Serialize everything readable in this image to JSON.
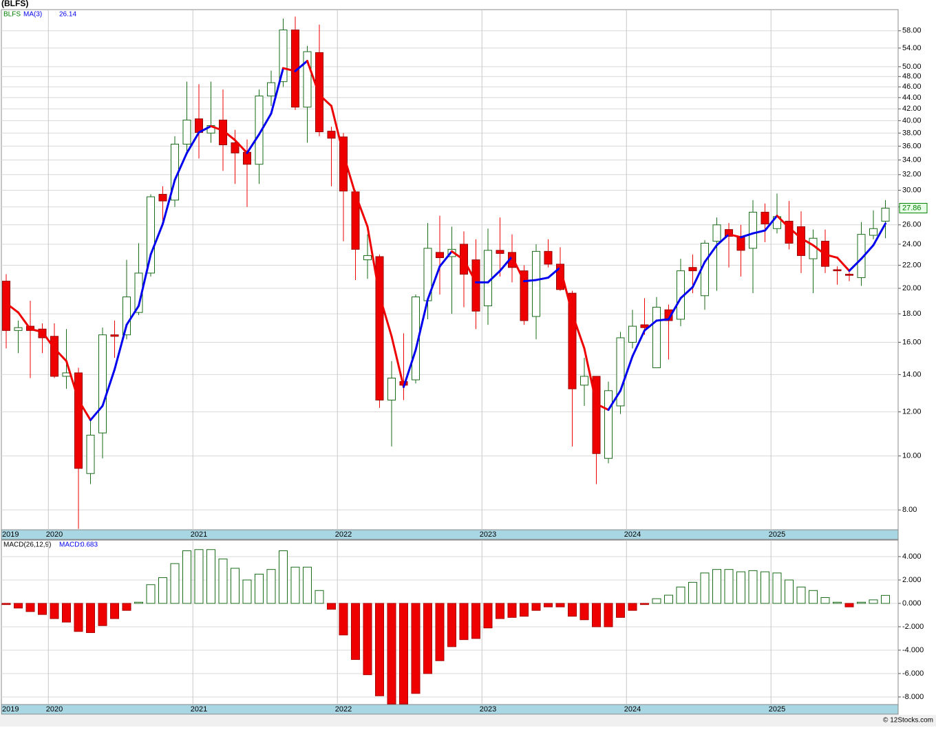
{
  "chart_data": [
    {
      "type": "candlestick",
      "title": "(BLFS)",
      "x": [
        "2019",
        null,
        null,
        null,
        "2020",
        null,
        null,
        null,
        null,
        null,
        null,
        null,
        null,
        null,
        null,
        null,
        "2021",
        null,
        null,
        null,
        null,
        null,
        null,
        null,
        null,
        null,
        null,
        null,
        "2022",
        null,
        null,
        null,
        null,
        null,
        null,
        null,
        null,
        null,
        null,
        null,
        "2023",
        null,
        null,
        null,
        null,
        null,
        null,
        null,
        null,
        null,
        null,
        null,
        "2024",
        null,
        null,
        null,
        null,
        null,
        null,
        null,
        null,
        null,
        null,
        null,
        "2025",
        null,
        null,
        null,
        null,
        null,
        null,
        null,
        null,
        null
      ],
      "series": [
        {
          "name": "BLFS",
          "color": "#008000",
          "up_color": "#1a6b1a",
          "down_color": "#ee0000",
          "open": [
            20.6,
            16.8,
            17.1,
            16.9,
            16.4,
            13.9,
            14.1,
            9.3,
            11.0,
            16.5,
            16.5,
            18.1,
            21.3,
            29.5,
            28.8,
            36.3,
            40.3,
            38.0,
            40.1,
            36.5,
            35.1,
            33.4,
            44.3,
            47.0,
            58.2,
            42.3,
            53.0,
            38.3,
            37.4,
            29.8,
            22.5,
            22.8,
            12.6,
            13.6,
            13.7,
            19.0,
            23.2,
            22.8,
            24.0,
            22.5,
            18.6,
            23.4,
            23.2,
            21.5,
            17.8,
            23.3,
            22.1,
            19.6,
            13.4,
            13.9,
            9.9,
            12.3,
            16.0,
            17.2,
            14.4,
            18.3,
            17.6,
            21.8,
            19.4,
            24.3,
            25.5,
            24.8,
            23.6,
            27.4,
            25.6,
            26.4,
            25.8,
            22.6,
            24.3,
            21.6,
            21.2,
            20.9,
            24.9,
            26.4
          ],
          "high": [
            21.2,
            17.5,
            19.0,
            17.3,
            17.3,
            16.9,
            14.4,
            11.6,
            17.0,
            17.5,
            22.5,
            24.1,
            29.5,
            30.5,
            37.5,
            47.0,
            46.5,
            47.0,
            45.5,
            38.5,
            37.0,
            45.5,
            49.2,
            61.0,
            61.5,
            54.5,
            59.5,
            39.0,
            38.0,
            30.0,
            25.0,
            23.0,
            14.8,
            16.6,
            19.5,
            26.2,
            27.0,
            25.8,
            25.3,
            24.5,
            25.6,
            26.8,
            25.0,
            22.0,
            24.0,
            24.5,
            23.7,
            19.8,
            15.0,
            13.9,
            13.6,
            16.7,
            18.3,
            19.2,
            19.3,
            18.7,
            22.6,
            23.0,
            24.4,
            26.8,
            26.2,
            26.0,
            28.8,
            28.4,
            29.6,
            28.7,
            27.5,
            25.5,
            25.5,
            21.9,
            21.4,
            26.3,
            27.6,
            28.8
          ],
          "low": [
            15.6,
            15.3,
            13.8,
            15.3,
            13.8,
            13.2,
            7.4,
            8.9,
            9.9,
            15.0,
            16.2,
            17.9,
            21.0,
            26.0,
            28.0,
            34.8,
            34.2,
            36.5,
            32.5,
            30.8,
            28.0,
            30.8,
            42.5,
            46.0,
            41.8,
            36.5,
            37.5,
            30.5,
            24.3,
            20.7,
            20.8,
            12.2,
            10.4,
            12.6,
            13.5,
            17.6,
            19.5,
            18.0,
            18.5,
            16.9,
            17.2,
            21.0,
            20.5,
            17.2,
            16.2,
            21.8,
            19.8,
            10.4,
            12.3,
            8.9,
            9.7,
            11.9,
            15.6,
            16.5,
            14.4,
            14.9,
            17.1,
            19.6,
            18.3,
            19.8,
            21.8,
            21.0,
            19.6,
            24.2,
            25.1,
            23.5,
            21.3,
            19.6,
            21.3,
            20.3,
            20.6,
            20.2,
            24.5,
            24.6
          ],
          "close": [
            16.8,
            17.0,
            16.8,
            16.3,
            13.9,
            14.1,
            9.5,
            10.9,
            16.5,
            16.4,
            19.3,
            21.3,
            29.2,
            28.7,
            36.3,
            40.1,
            38.1,
            39.2,
            36.2,
            35.0,
            33.4,
            44.3,
            46.8,
            58.2,
            42.3,
            53.2,
            38.2,
            37.2,
            29.9,
            23.5,
            22.9,
            12.6,
            13.8,
            13.4,
            19.3,
            23.6,
            22.7,
            23.5,
            21.2,
            18.2,
            23.4,
            23.1,
            21.8,
            17.5,
            23.3,
            22.1,
            19.9,
            13.2,
            13.9,
            10.1,
            13.1,
            16.3,
            17.1,
            17.0,
            18.5,
            17.5,
            21.5,
            21.5,
            24.1,
            26.0,
            24.8,
            23.4,
            27.4,
            26.1,
            26.9,
            24.1,
            22.9,
            24.6,
            21.9,
            21.5,
            21.1,
            25.0,
            25.6,
            27.86
          ]
        }
      ],
      "ma": {
        "name": "MA(3)",
        "color": "#0000ee",
        "up_color": "#0000ee",
        "down_color": "#ee0000",
        "values": [
          18.8,
          18.1,
          16.9,
          16.7,
          15.6,
          14.8,
          12.6,
          11.6,
          12.3,
          14.3,
          17.2,
          18.6,
          23.0,
          26.1,
          31.3,
          35.0,
          38.1,
          39.1,
          38.4,
          36.9,
          35.0,
          37.8,
          41.2,
          49.7,
          49.1,
          51.2,
          44.5,
          42.5,
          34.8,
          29.5,
          25.8,
          19.4,
          16.4,
          13.3,
          15.5,
          19.1,
          21.9,
          23.3,
          22.5,
          20.5,
          20.5,
          21.5,
          22.8,
          20.6,
          20.7,
          20.9,
          21.8,
          18.0,
          15.6,
          12.4,
          12.1,
          13.1,
          15.1,
          16.8,
          17.5,
          17.6,
          19.2,
          20.1,
          22.3,
          23.9,
          25.0,
          24.7,
          25.1,
          25.4,
          27.0,
          25.7,
          24.6,
          23.9,
          23.0,
          22.7,
          21.5,
          22.6,
          23.9,
          26.14
        ]
      },
      "log_scale": true,
      "grid": true,
      "ylim": [
        7.37,
        63.3
      ],
      "yticks": [
        {
          "value": 8,
          "label": "8.00"
        },
        {
          "value": 10,
          "label": "10.00"
        },
        {
          "value": 12,
          "label": "12.00"
        },
        {
          "value": 14,
          "label": "14.00"
        },
        {
          "value": 16,
          "label": "16.00"
        },
        {
          "value": 18,
          "label": "18.00"
        },
        {
          "value": 20,
          "label": "20.00"
        },
        {
          "value": 22,
          "label": "22.00"
        },
        {
          "value": 24,
          "label": "24.00"
        },
        {
          "value": 26,
          "label": "26.00"
        },
        {
          "value": 28,
          "label": "28.00"
        },
        {
          "value": 30,
          "label": "30.00"
        },
        {
          "value": 32,
          "label": "32.00"
        },
        {
          "value": 34,
          "label": "34.00"
        },
        {
          "value": 36,
          "label": "36.00"
        },
        {
          "value": 38,
          "label": "38.00"
        },
        {
          "value": 40,
          "label": "40.00"
        },
        {
          "value": 42,
          "label": "42.00"
        },
        {
          "value": 44,
          "label": "44.00"
        },
        {
          "value": 46,
          "label": "46.00"
        },
        {
          "value": 48,
          "label": "48.00"
        },
        {
          "value": 50,
          "label": "50.00"
        },
        {
          "value": 54,
          "label": "54.00"
        },
        {
          "value": 58,
          "label": "58.00"
        }
      ]
    },
    {
      "type": "bar",
      "series": [
        {
          "name": "MACD(26,12,9)",
          "up_color": "#1a6b1a",
          "down_color": "#ee0000",
          "values": [
            -0.1,
            -0.4,
            -0.7,
            -0.95,
            -1.3,
            -1.6,
            -2.4,
            -2.5,
            -1.9,
            -1.3,
            -0.6,
            0.1,
            1.6,
            2.2,
            3.4,
            4.5,
            4.6,
            4.6,
            3.8,
            3.0,
            2.0,
            2.5,
            2.9,
            4.5,
            3.1,
            3.1,
            1.1,
            -0.5,
            -2.7,
            -4.8,
            -6.1,
            -7.9,
            -8.6,
            -8.6,
            -7.7,
            -6.0,
            -4.9,
            -3.7,
            -3.1,
            -3.0,
            -2.1,
            -1.3,
            -1.2,
            -1.1,
            -0.6,
            -0.3,
            -0.3,
            -1.1,
            -1.4,
            -2.0,
            -2.0,
            -1.2,
            -0.6,
            -0.1,
            0.4,
            0.7,
            1.4,
            1.8,
            2.6,
            2.9,
            2.9,
            2.7,
            2.8,
            2.7,
            2.6,
            2.0,
            1.4,
            1.1,
            0.5,
            0.1,
            -0.3,
            0.1,
            0.3,
            0.683
          ]
        }
      ],
      "current_label": "MACD:",
      "grid": true,
      "ylim": [
        -8.65,
        5.41
      ],
      "yticks": [
        {
          "value": 4,
          "label": "4.000"
        },
        {
          "value": 2,
          "label": "2.000"
        },
        {
          "value": 0,
          "label": "0.000"
        },
        {
          "value": -2,
          "label": "-2.000"
        },
        {
          "value": -4,
          "label": "-4.000"
        },
        {
          "value": -6,
          "label": "-6.000"
        },
        {
          "value": -8,
          "label": "-8.000"
        }
      ]
    }
  ],
  "footer": "© 12Stocks.com"
}
